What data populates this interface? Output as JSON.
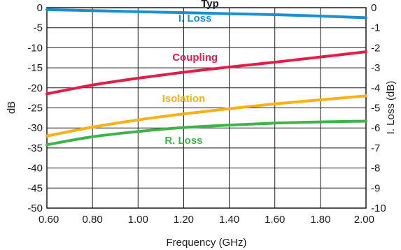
{
  "chart_data": {
    "type": "line",
    "title": "Typ",
    "xlabel": "Frequency (GHz)",
    "ylabel": "dB",
    "y2label": "I. Loss (dB)",
    "xlim": [
      0.6,
      2.0
    ],
    "ylim": [
      -50,
      0
    ],
    "y2lim": [
      -10,
      0
    ],
    "x_ticks": [
      "0.60",
      "0.80",
      "1.00",
      "1.20",
      "1.40",
      "1.60",
      "1.80",
      "2.00"
    ],
    "y_ticks": [
      "0",
      "-5",
      "-10",
      "-15",
      "-20",
      "-25",
      "-30",
      "-35",
      "-40",
      "-45",
      "-50"
    ],
    "y2_ticks": [
      "0",
      "-1",
      "-2",
      "-3",
      "-4",
      "-5",
      "-6",
      "-7",
      "-8",
      "-9",
      "-10"
    ],
    "grid": true,
    "x": [
      0.6,
      0.8,
      1.0,
      1.2,
      1.4,
      1.6,
      1.8,
      2.0
    ],
    "series": [
      {
        "name": "I. Loss",
        "axis": "right",
        "color": "#1b8fd1",
        "values": [
          -0.1,
          -0.15,
          -0.2,
          -0.25,
          -0.3,
          -0.35,
          -0.42,
          -0.5
        ]
      },
      {
        "name": "Coupling",
        "axis": "left",
        "color": "#e11d48",
        "values": [
          -21.5,
          -19.3,
          -17.6,
          -16.1,
          -14.8,
          -13.6,
          -12.3,
          -11.0
        ]
      },
      {
        "name": "Isolation",
        "axis": "left",
        "color": "#f9b116",
        "values": [
          -32.0,
          -29.8,
          -28.0,
          -26.5,
          -25.2,
          -24.0,
          -23.0,
          -22.0
        ]
      },
      {
        "name": "R. Loss",
        "axis": "left",
        "color": "#3db34a",
        "values": [
          -34.2,
          -32.2,
          -30.9,
          -29.9,
          -29.3,
          -28.8,
          -28.5,
          -28.3
        ]
      }
    ],
    "annotations": [
      {
        "text": "I. Loss",
        "x": 1.25,
        "y": -3.5,
        "color": "#1b8fd1"
      },
      {
        "text": "Coupling",
        "x": 1.25,
        "y": -13.2,
        "color": "#e11d48"
      },
      {
        "text": "Isolation",
        "x": 1.2,
        "y": -23.5,
        "color": "#f9b116"
      },
      {
        "text": "R. Loss",
        "x": 1.2,
        "y": -34.0,
        "color": "#3db34a"
      }
    ]
  }
}
